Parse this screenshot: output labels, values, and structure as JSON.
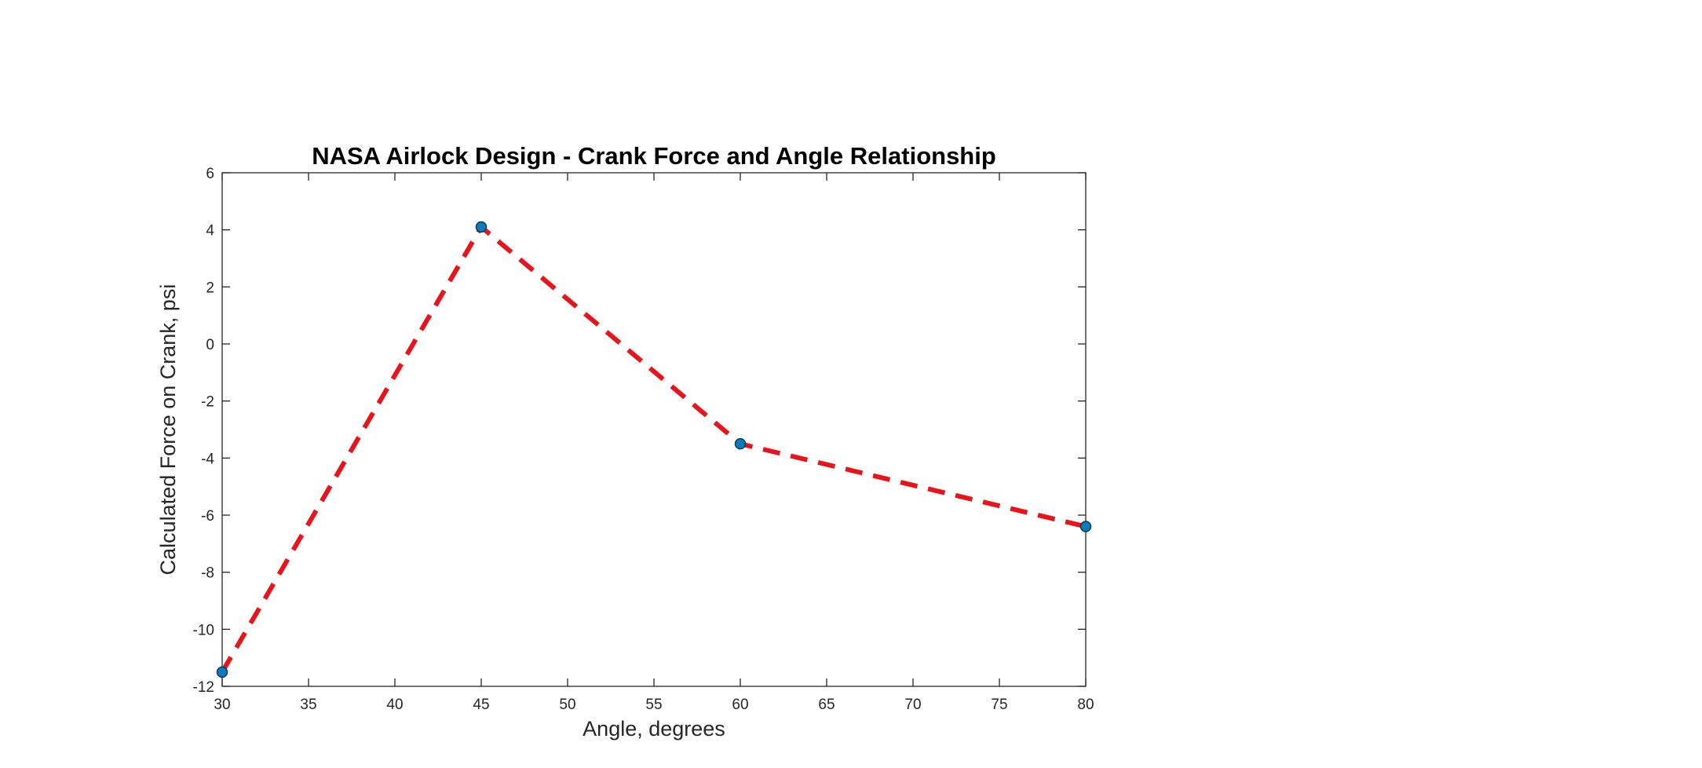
{
  "chart_data": {
    "type": "line",
    "title": "NASA Airlock Design - Crank Force and Angle Relationship",
    "xlabel": "Angle, degrees",
    "ylabel": "Calculated Force on Crank, psi",
    "xlim": [
      30,
      80
    ],
    "ylim": [
      -12,
      6
    ],
    "xticks": [
      30,
      35,
      40,
      45,
      50,
      55,
      60,
      65,
      70,
      75,
      80
    ],
    "yticks": [
      -12,
      -10,
      -8,
      -6,
      -4,
      -2,
      0,
      2,
      4,
      6
    ],
    "grid": false,
    "box": true,
    "series": [
      {
        "x": [
          30,
          45,
          60,
          80
        ],
        "y": [
          -11.5,
          4.1,
          -3.5,
          -6.4
        ],
        "line_style": "dashed",
        "line_color": "#e8141c",
        "marker": "circle",
        "marker_face_color": "#0c7bb8",
        "marker_edge_color": "#0a3a5c"
      }
    ]
  }
}
